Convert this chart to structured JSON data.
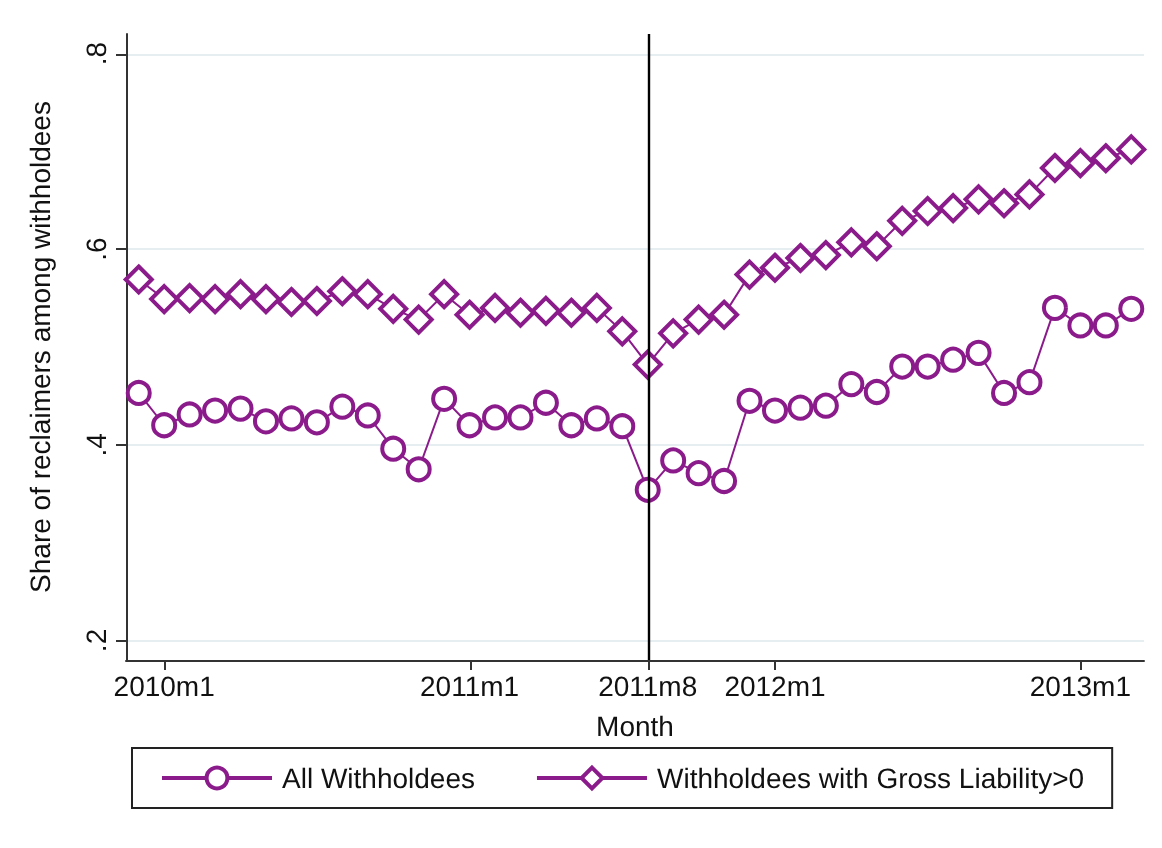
{
  "chart_data": {
    "type": "line",
    "xlabel": "Month",
    "ylabel": "Share of reclaimers among withholdees",
    "categories": [
      null,
      "2010m1",
      null,
      null,
      null,
      null,
      null,
      null,
      null,
      null,
      null,
      null,
      null,
      "2011m1",
      null,
      null,
      null,
      null,
      null,
      null,
      "2011m8",
      null,
      null,
      null,
      null,
      "2012m1",
      null,
      null,
      null,
      null,
      null,
      null,
      null,
      null,
      null,
      null,
      null,
      "2013m1",
      null,
      null
    ],
    "series": [
      {
        "name": "All Withholdees",
        "color": "#8b1a8b",
        "marker": "circle",
        "values": [
          0.453,
          0.42,
          0.431,
          0.435,
          0.437,
          0.424,
          0.427,
          0.423,
          0.439,
          0.43,
          0.396,
          0.375,
          0.447,
          0.42,
          0.428,
          0.428,
          0.443,
          0.42,
          0.427,
          0.419,
          0.354,
          0.384,
          0.371,
          0.363,
          0.445,
          0.435,
          0.438,
          0.44,
          0.462,
          0.454,
          0.48,
          0.48,
          0.487,
          0.494,
          0.453,
          0.464,
          0.54,
          0.522,
          0.522,
          0.539
        ]
      },
      {
        "name": "Withholdees with Gross Liability>0",
        "color": "#8b1a8b",
        "marker": "diamond",
        "values": [
          0.569,
          0.549,
          0.55,
          0.549,
          0.554,
          0.549,
          0.546,
          0.547,
          0.557,
          0.554,
          0.539,
          0.528,
          0.554,
          0.533,
          0.54,
          0.535,
          0.537,
          0.535,
          0.54,
          0.516,
          0.482,
          0.514,
          0.528,
          0.533,
          0.574,
          0.581,
          0.591,
          0.594,
          0.607,
          0.603,
          0.629,
          0.639,
          0.642,
          0.651,
          0.647,
          0.656,
          0.683,
          0.688,
          0.693,
          0.702
        ]
      }
    ],
    "ylim": [
      0.18,
      0.82
    ],
    "yticks": [
      {
        "value": 0.2,
        "label": ".2"
      },
      {
        "value": 0.4,
        "label": ".4"
      },
      {
        "value": 0.6,
        "label": ".6"
      },
      {
        "value": 0.8,
        "label": ".8"
      }
    ],
    "ref_lines": [
      {
        "axis": "x",
        "value": "2011m8",
        "color": "#000000"
      }
    ],
    "grid": "y",
    "legend": "bottom",
    "line_style": "solid"
  }
}
